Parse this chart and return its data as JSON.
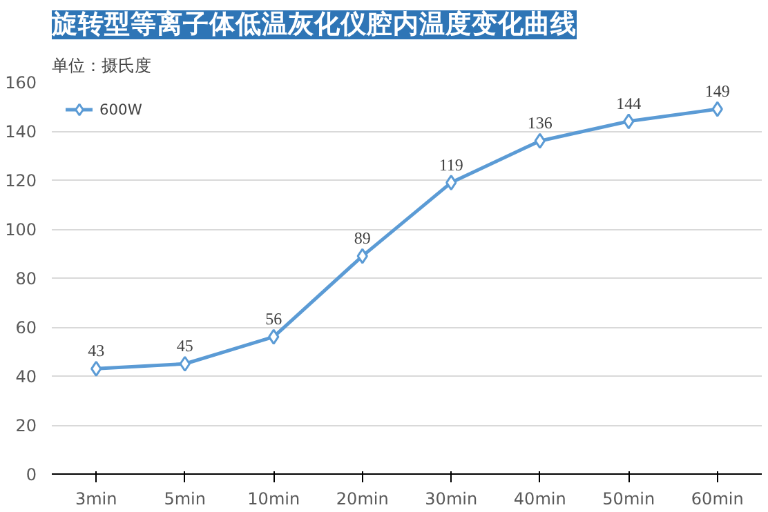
{
  "chart_data": {
    "type": "line",
    "title": "旋转型等离子体低温灰化仪腔内温度变化曲线",
    "ylabel": "单位：摄氏度",
    "categories": [
      "3min",
      "5min",
      "10min",
      "20min",
      "30min",
      "40min",
      "50min",
      "60min"
    ],
    "series": [
      {
        "name": "600W",
        "color": "#5b9bd5",
        "values": [
          43,
          45,
          56,
          89,
          119,
          136,
          144,
          149
        ]
      }
    ],
    "ylim": [
      0,
      160
    ],
    "yticks": [
      0,
      20,
      40,
      60,
      80,
      100,
      120,
      140,
      160
    ],
    "grid": "y",
    "legend": "top left",
    "marker": "diamond",
    "line_style": "solid",
    "data_labels": true
  }
}
